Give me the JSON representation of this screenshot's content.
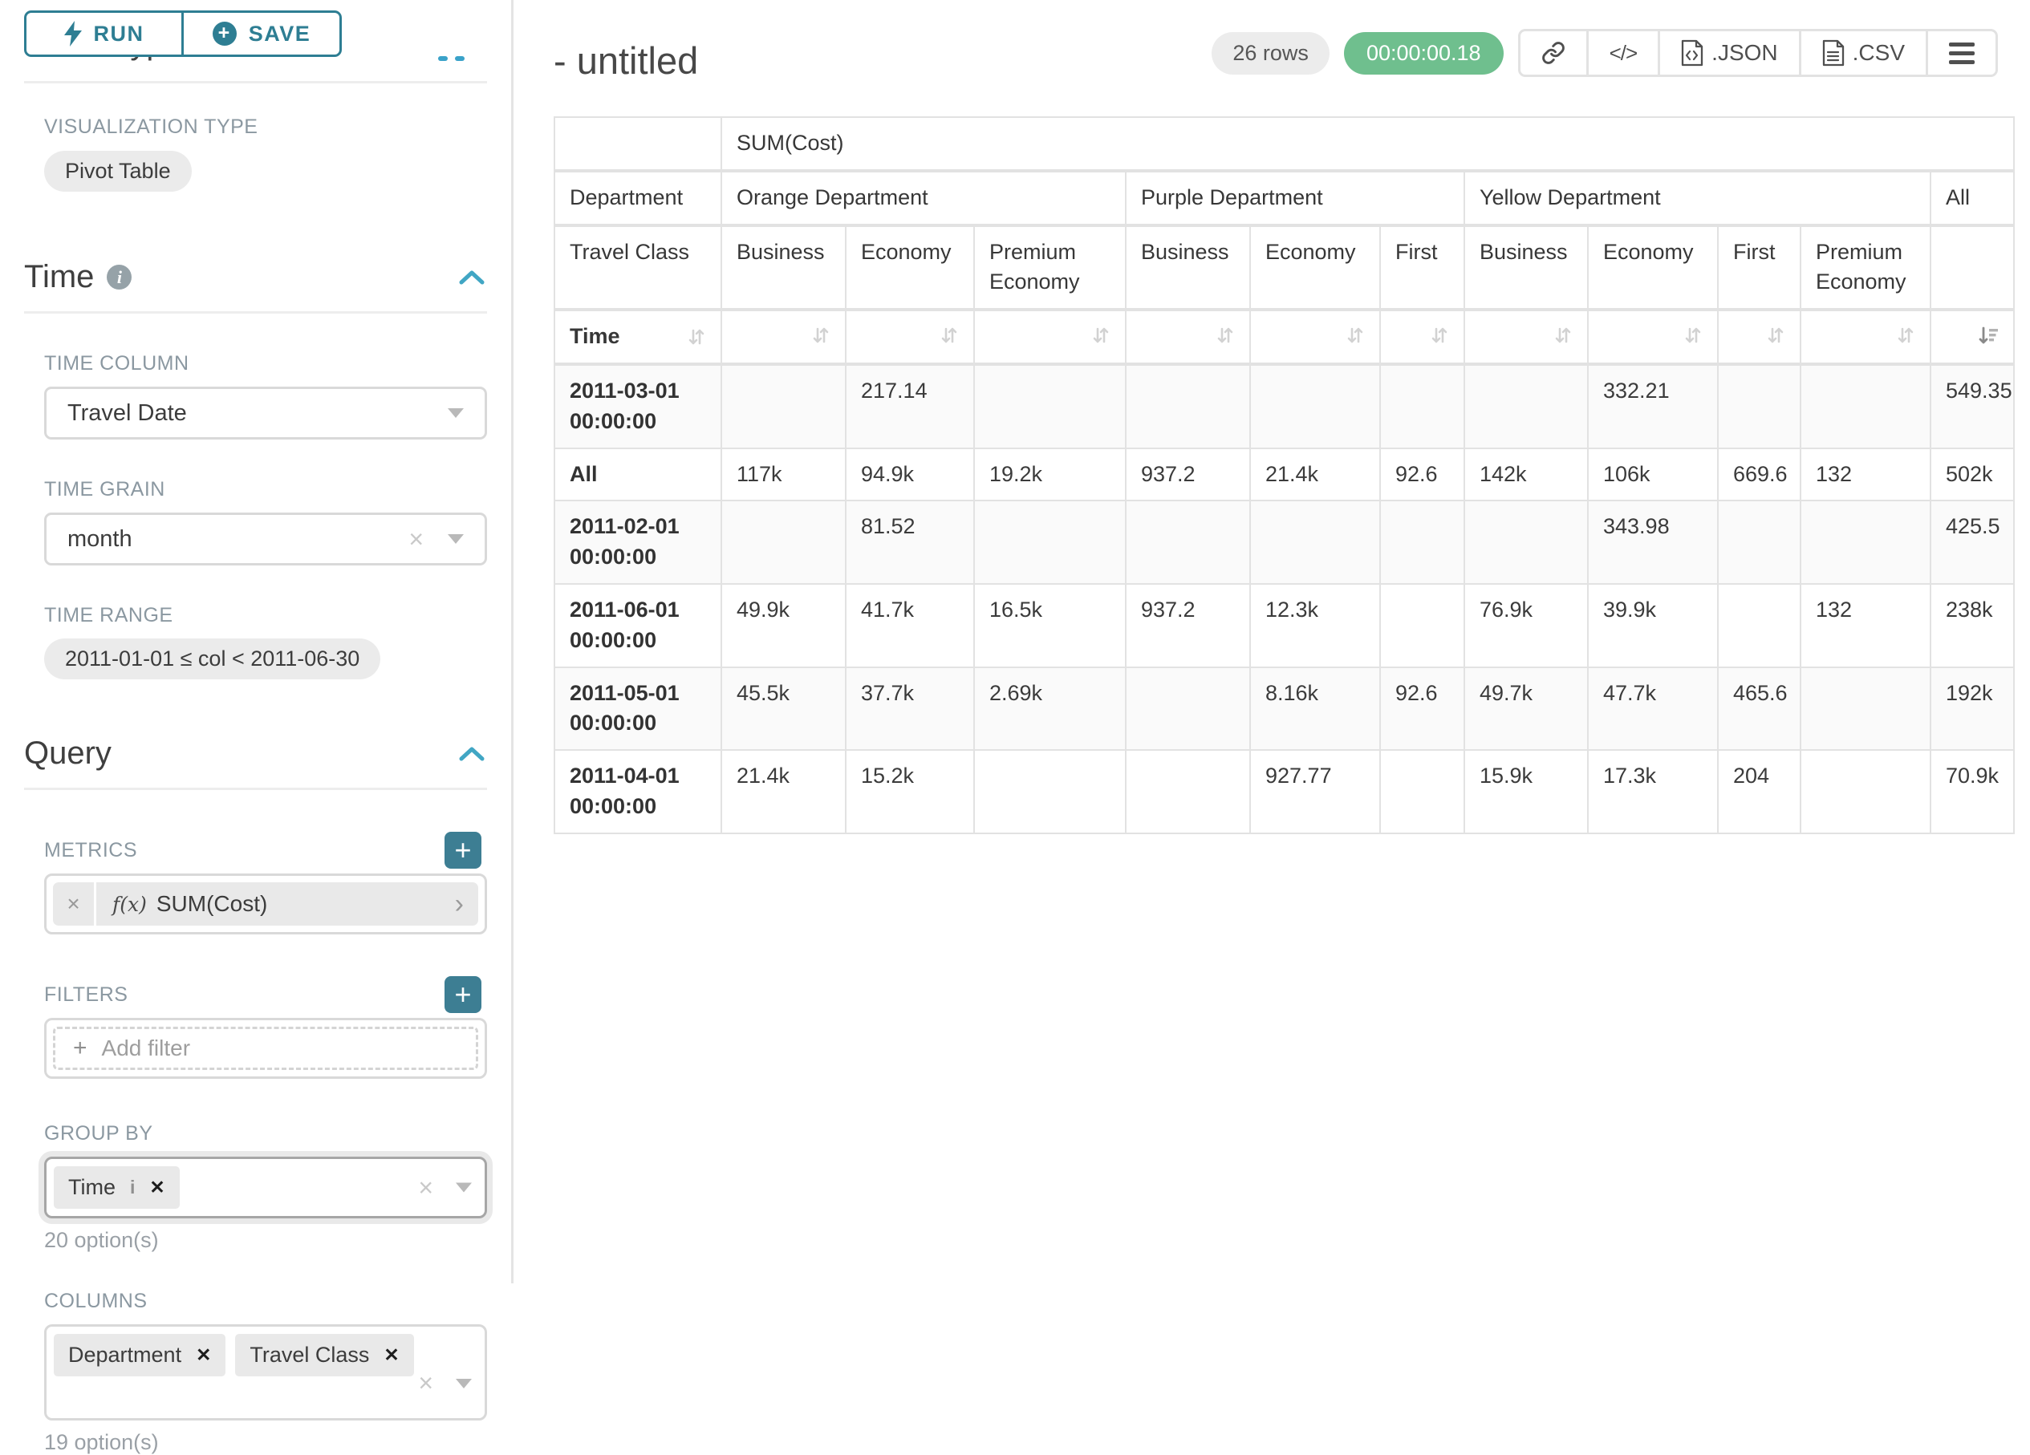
{
  "icons": {
    "plus": "+",
    "close_bold": "✕",
    "close_thin": "×",
    "chevron_right": "›",
    "code": "</>",
    "info": "i"
  },
  "colors": {
    "accent_teal": "#2e7e93",
    "accent_blue": "#3aa2c9",
    "success_green": "#6fbf8e",
    "label_gray": "#8b98a1"
  },
  "sidebar": {
    "run_label": "RUN",
    "save_label": "SAVE",
    "chart_type_heading": "Chart Type",
    "viz_type_label": "VISUALIZATION TYPE",
    "viz_type_value": "Pivot Table",
    "time": {
      "title": "Time",
      "time_column_label": "TIME COLUMN",
      "time_column_value": "Travel Date",
      "time_grain_label": "TIME GRAIN",
      "time_grain_value": "month",
      "time_range_label": "TIME RANGE",
      "time_range_value": "2011-01-01 ≤ col < 2011-06-30"
    },
    "query": {
      "title": "Query",
      "metrics_label": "METRICS",
      "metric_fx": "f(x)",
      "metric_value": "SUM(Cost)",
      "filters_label": "FILTERS",
      "add_filter_label": "Add filter",
      "group_by_label": "GROUP BY",
      "group_by_chips": [
        {
          "label": "Time",
          "has_info": true
        }
      ],
      "group_by_options": "20 option(s)",
      "columns_label": "COLUMNS",
      "columns_chips": [
        {
          "label": "Department",
          "has_info": false
        },
        {
          "label": "Travel Class",
          "has_info": false
        }
      ],
      "columns_options": "19 option(s)"
    }
  },
  "header": {
    "title": "- untitled",
    "rows_badge": "26 rows",
    "timer": "00:00:00.18",
    "json_label": ".JSON",
    "csv_label": ".CSV"
  },
  "pivot_table": {
    "metric_header": "SUM(Cost)",
    "row_axis": [
      "Department",
      "Travel Class",
      "Time"
    ],
    "col_groups": [
      {
        "label": "Orange Department",
        "cols": [
          "Business",
          "Economy",
          "Premium Economy"
        ]
      },
      {
        "label": "Purple Department",
        "cols": [
          "Business",
          "Economy",
          "First"
        ]
      },
      {
        "label": "Yellow Department",
        "cols": [
          "Business",
          "Economy",
          "First",
          "Premium Economy"
        ]
      },
      {
        "label": "All",
        "cols": [
          ""
        ]
      }
    ],
    "sorted_desc_col": 10,
    "rows": [
      {
        "label": "2011-03-01 00:00:00",
        "values": [
          "",
          "217.14",
          "",
          "",
          "",
          "",
          "",
          "332.21",
          "",
          "",
          "549.35"
        ]
      },
      {
        "label": "All",
        "values": [
          "117k",
          "94.9k",
          "19.2k",
          "937.2",
          "21.4k",
          "92.6",
          "142k",
          "106k",
          "669.6",
          "132",
          "502k"
        ]
      },
      {
        "label": "2011-02-01 00:00:00",
        "values": [
          "",
          "81.52",
          "",
          "",
          "",
          "",
          "",
          "343.98",
          "",
          "",
          "425.5"
        ]
      },
      {
        "label": "2011-06-01 00:00:00",
        "values": [
          "49.9k",
          "41.7k",
          "16.5k",
          "937.2",
          "12.3k",
          "",
          "76.9k",
          "39.9k",
          "",
          "132",
          "238k"
        ]
      },
      {
        "label": "2011-05-01 00:00:00",
        "values": [
          "45.5k",
          "37.7k",
          "2.69k",
          "",
          "8.16k",
          "92.6",
          "49.7k",
          "47.7k",
          "465.6",
          "",
          "192k"
        ]
      },
      {
        "label": "2011-04-01 00:00:00",
        "values": [
          "21.4k",
          "15.2k",
          "",
          "",
          "927.77",
          "",
          "15.9k",
          "17.3k",
          "204",
          "",
          "70.9k"
        ]
      }
    ]
  }
}
